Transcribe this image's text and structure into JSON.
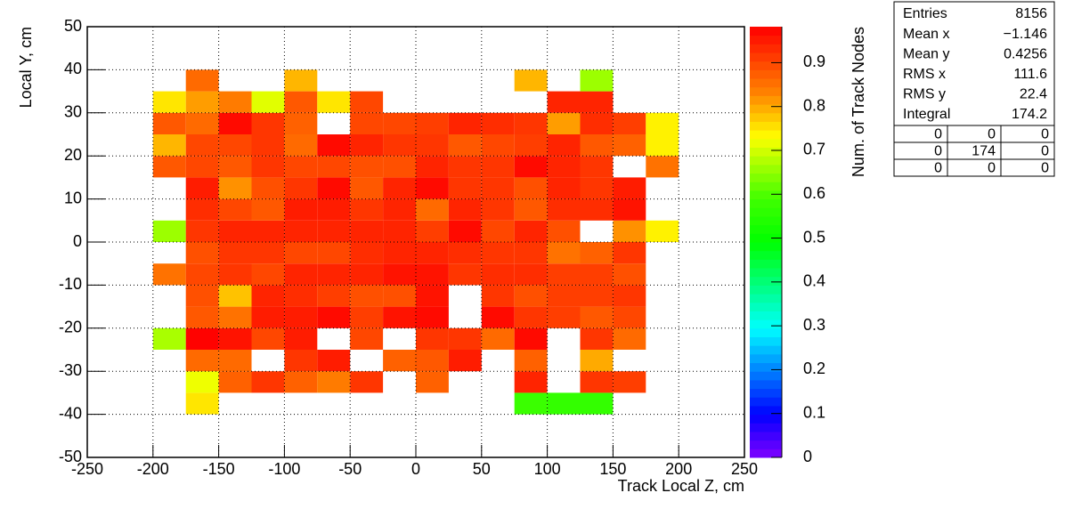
{
  "chart_data": {
    "type": "heatmap",
    "xlabel": "Track Local Z, cm",
    "ylabel": "Local Y, cm",
    "zlabel": "Num. of Track Nodes",
    "xbins": [
      -200,
      -175,
      -150,
      -125,
      -100,
      -75,
      -50,
      -25,
      0,
      25,
      50,
      75,
      100,
      125,
      150,
      175,
      200
    ],
    "ybins": [
      -40,
      -35,
      -30,
      -25,
      -20,
      -15,
      -10,
      -5,
      0,
      5,
      10,
      15,
      20,
      25,
      30,
      35,
      40
    ],
    "values": [
      [
        null,
        0.75,
        null,
        null,
        null,
        null,
        null,
        null,
        null,
        null,
        null,
        0.58,
        0.57,
        0.57,
        null,
        null
      ],
      [
        null,
        0.72,
        0.87,
        0.92,
        0.87,
        0.84,
        0.92,
        null,
        0.87,
        null,
        null,
        0.94,
        null,
        0.92,
        0.91,
        null
      ],
      [
        null,
        0.86,
        0.86,
        null,
        0.92,
        0.95,
        null,
        0.87,
        0.88,
        0.95,
        null,
        0.87,
        null,
        0.8,
        null,
        null
      ],
      [
        0.67,
        0.98,
        0.96,
        0.9,
        0.95,
        null,
        0.9,
        null,
        0.92,
        0.92,
        0.86,
        0.97,
        null,
        0.92,
        0.86,
        null
      ],
      [
        null,
        0.88,
        0.85,
        0.95,
        0.95,
        0.97,
        0.91,
        0.96,
        0.97,
        null,
        0.97,
        0.92,
        0.91,
        0.88,
        0.9,
        null
      ],
      [
        null,
        0.89,
        0.78,
        0.94,
        0.93,
        0.91,
        0.89,
        0.89,
        0.96,
        null,
        0.92,
        0.89,
        0.91,
        0.91,
        0.92,
        null
      ],
      [
        0.85,
        0.9,
        0.92,
        0.9,
        0.94,
        0.94,
        0.94,
        0.96,
        0.96,
        0.92,
        0.93,
        0.93,
        0.91,
        0.91,
        0.89,
        null
      ],
      [
        null,
        0.89,
        0.92,
        0.92,
        0.9,
        0.9,
        0.93,
        0.94,
        0.94,
        0.93,
        0.92,
        0.92,
        0.85,
        0.87,
        0.92,
        null
      ],
      [
        0.66,
        0.92,
        0.94,
        0.94,
        0.94,
        0.94,
        0.94,
        0.94,
        0.91,
        0.97,
        0.9,
        0.94,
        0.89,
        null,
        0.82,
        0.74
      ],
      [
        null,
        0.93,
        0.9,
        0.88,
        0.95,
        0.95,
        0.92,
        0.94,
        0.86,
        0.94,
        0.92,
        0.88,
        0.93,
        0.93,
        0.96,
        null
      ],
      [
        null,
        0.95,
        0.82,
        0.89,
        0.92,
        0.97,
        0.88,
        0.94,
        0.97,
        0.92,
        0.92,
        0.89,
        0.94,
        0.92,
        0.95,
        null
      ],
      [
        0.88,
        0.9,
        0.88,
        0.92,
        0.9,
        0.9,
        0.89,
        0.89,
        0.94,
        0.92,
        0.92,
        0.97,
        0.94,
        0.92,
        null,
        0.85
      ],
      [
        0.79,
        0.9,
        0.9,
        0.92,
        0.86,
        0.97,
        0.94,
        0.92,
        0.92,
        0.88,
        0.9,
        0.91,
        0.94,
        0.88,
        0.87,
        0.74
      ],
      [
        0.88,
        0.86,
        0.97,
        0.92,
        0.87,
        null,
        0.9,
        0.9,
        0.91,
        0.94,
        0.93,
        0.92,
        0.81,
        0.93,
        0.91,
        0.74
      ],
      [
        0.75,
        0.81,
        0.84,
        0.71,
        0.88,
        0.75,
        0.9,
        null,
        null,
        null,
        null,
        null,
        0.94,
        0.94,
        null,
        null
      ],
      [
        null,
        0.86,
        null,
        null,
        0.79,
        null,
        null,
        null,
        null,
        null,
        null,
        0.79,
        null,
        0.66,
        null,
        null
      ]
    ],
    "xlim": [
      -250,
      250
    ],
    "xticks": [
      -250,
      -200,
      -150,
      -100,
      -50,
      0,
      50,
      100,
      150,
      200,
      250
    ],
    "ylim": [
      -50,
      50
    ],
    "yticks": [
      -50,
      -40,
      -30,
      -20,
      -10,
      0,
      10,
      20,
      30,
      40,
      50
    ],
    "zlim": [
      0,
      0.982
    ],
    "zticks": [
      0,
      0.1,
      0.2,
      0.3,
      0.4,
      0.5,
      0.6,
      0.7,
      0.8,
      0.9
    ],
    "grid": true,
    "stats": {
      "rows": [
        [
          "Entries",
          "8156"
        ],
        [
          "Mean x",
          "−1.146"
        ],
        [
          "Mean y",
          "0.4256"
        ],
        [
          "RMS x",
          "111.6"
        ],
        [
          "RMS y",
          "22.4"
        ],
        [
          "Integral",
          "174.2"
        ]
      ],
      "table": [
        [
          "0",
          "0",
          "0"
        ],
        [
          "0",
          "174",
          "0"
        ],
        [
          "0",
          "0",
          "0"
        ]
      ]
    }
  }
}
